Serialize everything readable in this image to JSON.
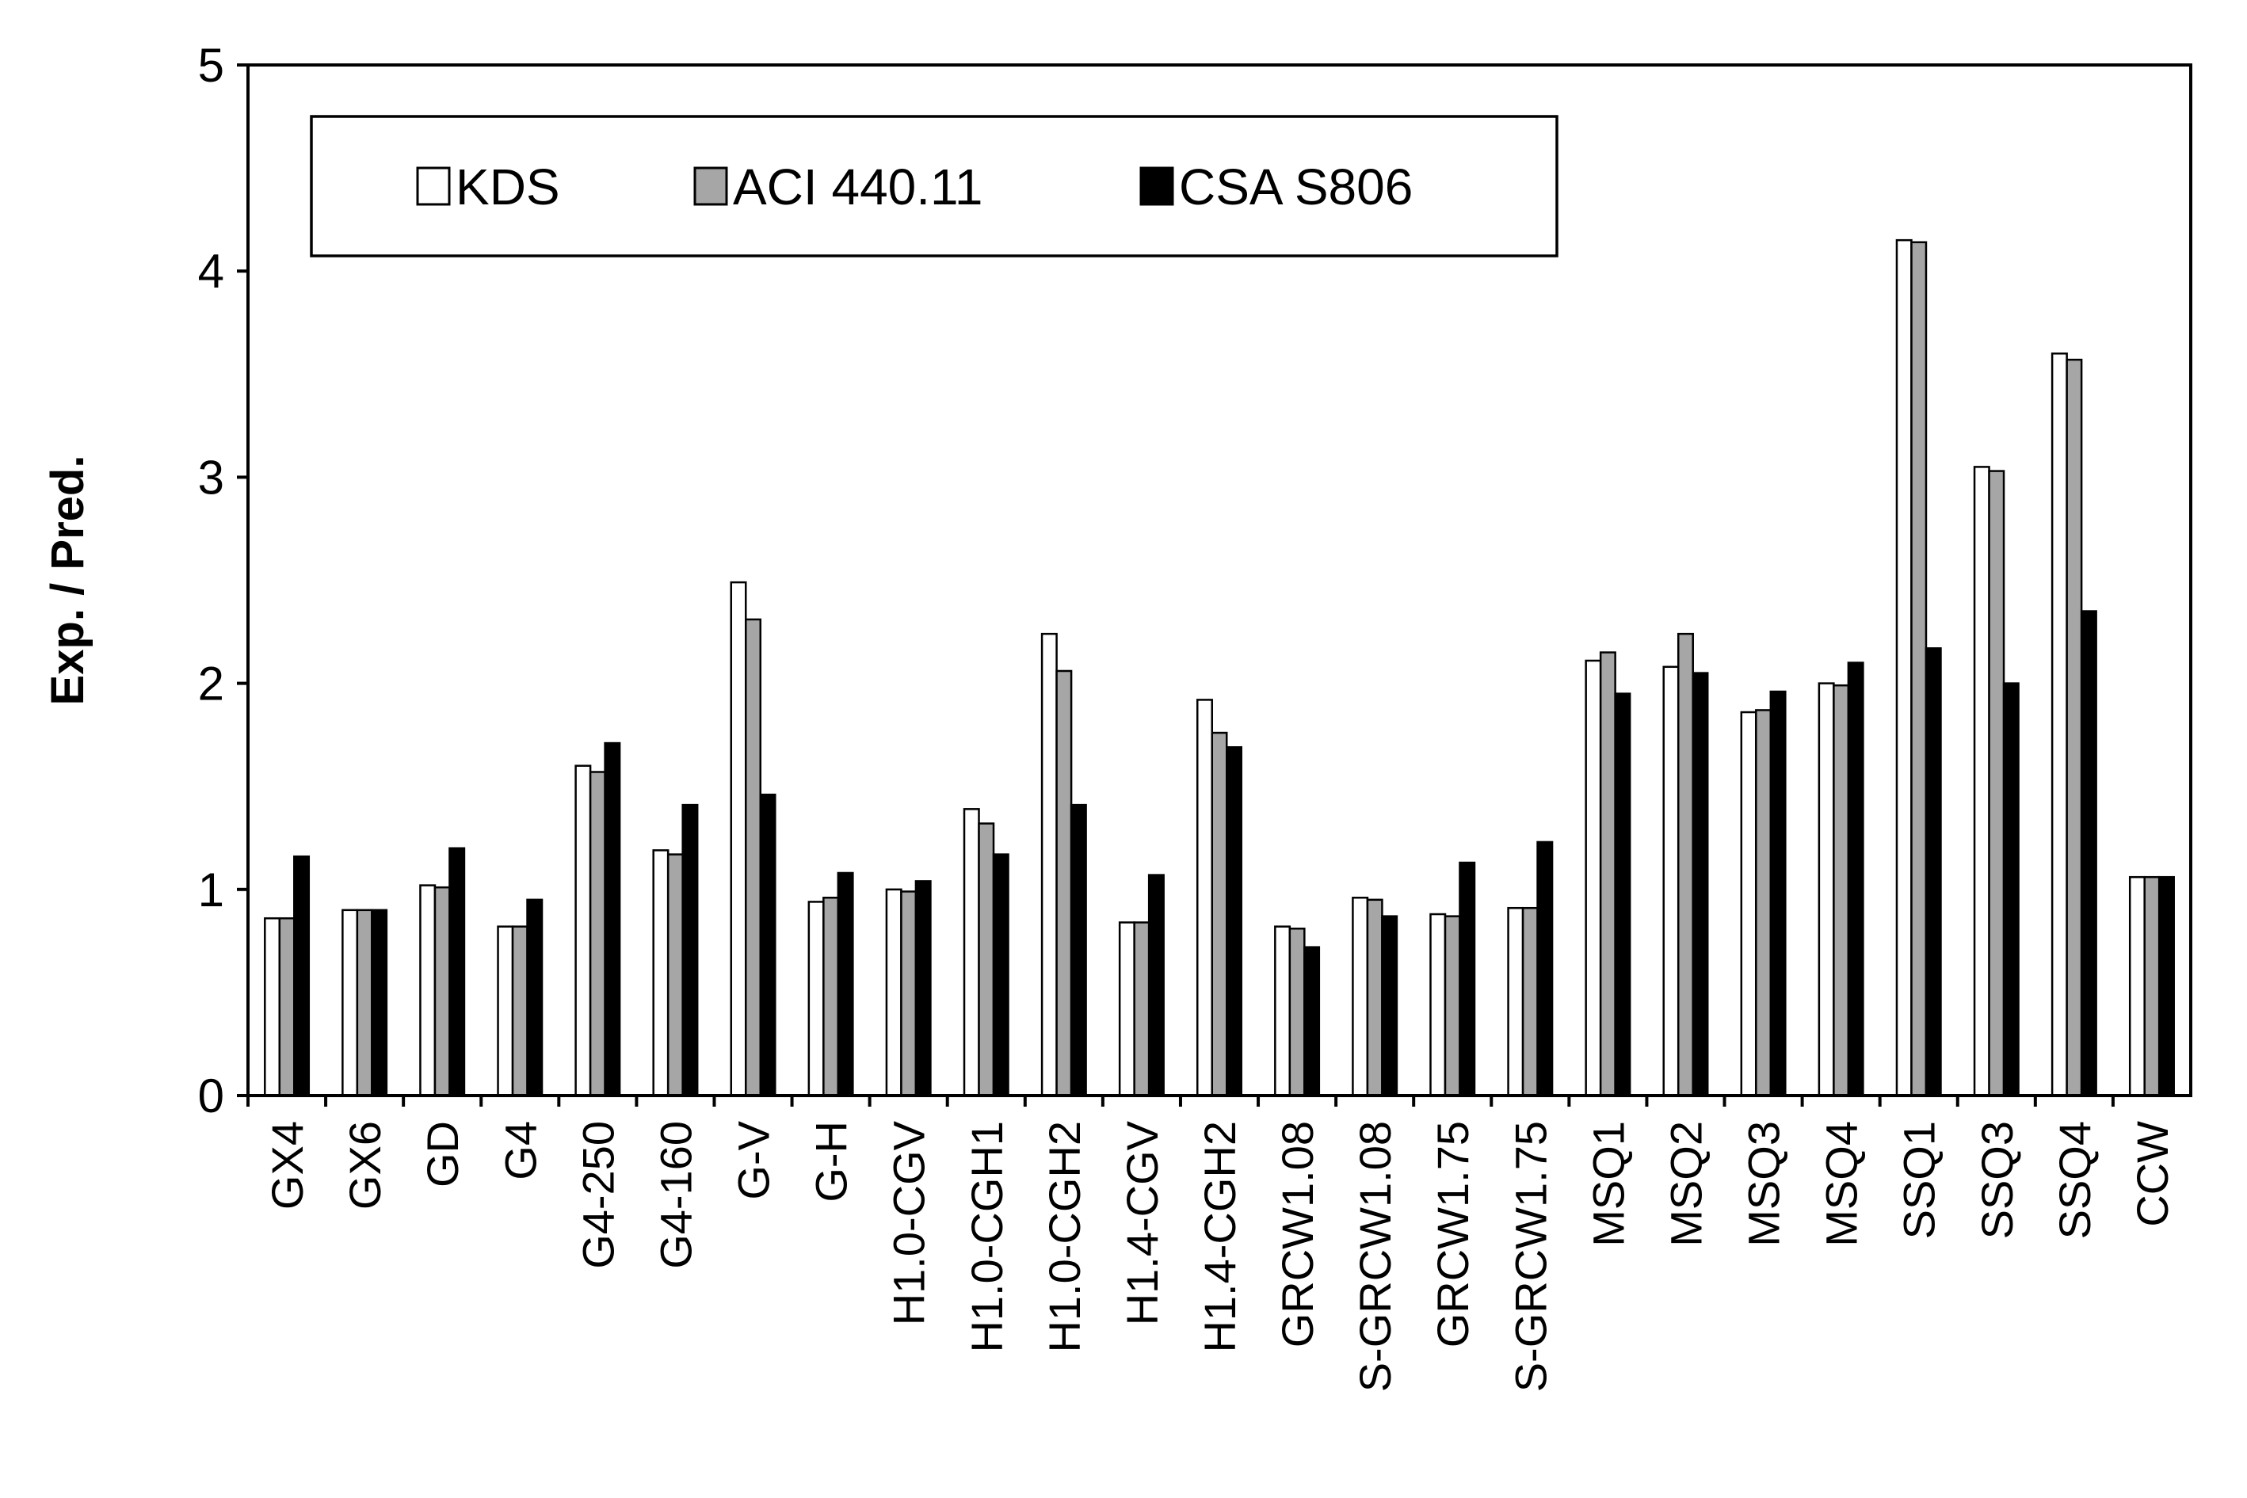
{
  "chart_data": {
    "type": "bar",
    "title": "",
    "xlabel": "",
    "ylabel": "Exp. / Pred.",
    "ylim": [
      0,
      5
    ],
    "yticks": [
      "0",
      "1",
      "2",
      "3",
      "4",
      "5"
    ],
    "grid": false,
    "legend_position": "top-left",
    "categories": [
      "GX4",
      "GX6",
      "GD",
      "G4",
      "G4-250",
      "G4-160",
      "G-V",
      "G-H",
      "H1.0-CGV",
      "H1.0-CGH1",
      "H1.0-CGH2",
      "H1.4-CGV",
      "H1.4-CGH2",
      "GRCW1.08",
      "S-GRCW1.08",
      "GRCW1.75",
      "S-GRCW1.75",
      "MSQ1",
      "MSQ2",
      "MSQ3",
      "MSQ4",
      "SSQ1",
      "SSQ3",
      "SSQ4",
      "CCW"
    ],
    "series": [
      {
        "name": "KDS",
        "color": "#ffffff",
        "values": [
          0.86,
          0.9,
          1.02,
          0.82,
          1.6,
          1.19,
          2.49,
          0.94,
          1.0,
          1.39,
          2.24,
          0.84,
          1.92,
          0.82,
          0.96,
          0.88,
          0.91,
          2.11,
          2.08,
          1.86,
          2.0,
          4.15,
          3.05,
          3.6,
          1.06
        ]
      },
      {
        "name": "ACI 440.11",
        "color": "#a6a6a6",
        "values": [
          0.86,
          0.9,
          1.01,
          0.82,
          1.57,
          1.17,
          2.31,
          0.96,
          0.99,
          1.32,
          2.06,
          0.84,
          1.76,
          0.81,
          0.95,
          0.87,
          0.91,
          2.15,
          2.24,
          1.87,
          1.99,
          4.14,
          3.03,
          3.57,
          1.06
        ]
      },
      {
        "name": "CSA S806",
        "color": "#000000",
        "values": [
          1.16,
          0.9,
          1.2,
          0.95,
          1.71,
          1.41,
          1.46,
          1.08,
          1.04,
          1.17,
          1.41,
          1.07,
          1.69,
          0.72,
          0.87,
          1.13,
          1.23,
          1.95,
          2.05,
          1.96,
          2.1,
          2.17,
          2.0,
          2.35,
          1.06
        ]
      }
    ]
  }
}
